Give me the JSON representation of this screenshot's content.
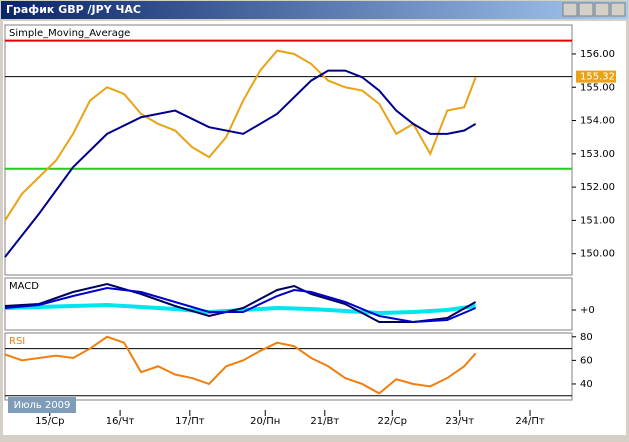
{
  "window": {
    "title": "График GBP /JPY  ЧАС"
  },
  "period_label": "Июль 2009",
  "chart_data": [
    {
      "type": "line",
      "label": "Simple_Moving_Average",
      "xlim": [
        0,
        100
      ],
      "ylim": [
        149.36,
        156.87
      ],
      "yticks": [
        {
          "value": 156,
          "label": "156.00"
        },
        {
          "value": 155,
          "label": "155.00"
        },
        {
          "value": 154,
          "label": "154.00"
        },
        {
          "value": 153,
          "label": "153.00"
        },
        {
          "value": 152,
          "label": "152.00"
        },
        {
          "value": 151,
          "label": "151.00"
        },
        {
          "value": 150,
          "label": "150.00"
        }
      ],
      "levels": [
        {
          "value": 156.4,
          "color": "#e00000"
        },
        {
          "value": 155.32,
          "color": "#000000",
          "tag_color": "#e8a317"
        },
        {
          "value": 152.55,
          "color": "#22cc22"
        }
      ],
      "series": [
        {
          "color": "#e8a317",
          "x": [
            0,
            3,
            6,
            9,
            12,
            15,
            18,
            21,
            24,
            27,
            30,
            33,
            36,
            39,
            42,
            45,
            48,
            51,
            54,
            57,
            60,
            63,
            66,
            69,
            72,
            75,
            78,
            81,
            83
          ],
          "values": [
            151.0,
            151.8,
            152.3,
            152.8,
            153.6,
            154.6,
            155.0,
            154.8,
            154.2,
            153.9,
            153.7,
            153.2,
            152.9,
            153.5,
            154.6,
            155.5,
            156.1,
            156.0,
            155.7,
            155.2,
            155.0,
            154.9,
            154.5,
            153.6,
            153.9,
            153.0,
            154.3,
            154.4,
            155.3
          ]
        },
        {
          "color": "#00008b",
          "x": [
            0,
            6,
            12,
            18,
            24,
            30,
            36,
            42,
            48,
            54,
            57,
            60,
            63,
            66,
            69,
            72,
            75,
            78,
            81,
            83
          ],
          "values": [
            149.9,
            151.2,
            152.6,
            153.6,
            154.1,
            154.3,
            153.8,
            153.6,
            154.2,
            155.2,
            155.5,
            155.5,
            155.3,
            154.9,
            154.3,
            153.9,
            153.6,
            153.6,
            153.7,
            153.9
          ]
        }
      ]
    },
    {
      "type": "line",
      "label": "MACD",
      "xlim": [
        0,
        100
      ],
      "ylim": [
        -1,
        1.6
      ],
      "yticks": [
        {
          "value": 0,
          "label": "+0"
        }
      ],
      "series": [
        {
          "color": "#00e5ee",
          "x": [
            0,
            6,
            12,
            18,
            24,
            30,
            36,
            42,
            48,
            54,
            60,
            66,
            72,
            78,
            83
          ],
          "values": [
            0.1,
            0.15,
            0.2,
            0.25,
            0.15,
            0.05,
            -0.1,
            0.0,
            0.1,
            0.05,
            -0.05,
            -0.15,
            -0.1,
            0.0,
            0.2
          ]
        },
        {
          "color": "#000060",
          "x": [
            0,
            6,
            12,
            18,
            24,
            30,
            36,
            42,
            48,
            51,
            54,
            60,
            66,
            72,
            78,
            83
          ],
          "values": [
            0.2,
            0.3,
            0.9,
            1.3,
            0.8,
            0.2,
            -0.3,
            0.1,
            1.0,
            1.2,
            0.8,
            0.3,
            -0.6,
            -0.6,
            -0.4,
            0.4
          ]
        },
        {
          "color": "#0000cd",
          "x": [
            0,
            6,
            12,
            18,
            24,
            30,
            36,
            42,
            48,
            51,
            54,
            60,
            66,
            72,
            78,
            83
          ],
          "values": [
            0.1,
            0.25,
            0.7,
            1.1,
            0.9,
            0.4,
            -0.1,
            -0.1,
            0.7,
            1.0,
            0.9,
            0.4,
            -0.3,
            -0.6,
            -0.5,
            0.1
          ]
        }
      ]
    },
    {
      "type": "line",
      "label": "RSI",
      "xlim": [
        0,
        100
      ],
      "ylim": [
        26.4,
        83.2
      ],
      "yticks": [
        80,
        60,
        40
      ],
      "levels": [
        {
          "value": 70,
          "color": "#000000"
        },
        {
          "value": 30,
          "color": "#000000"
        }
      ],
      "xticks": [
        {
          "value": 7.9,
          "label": "15/Ср"
        },
        {
          "value": 20.3,
          "label": "16/Чт"
        },
        {
          "value": 32.6,
          "label": "17/Пт"
        },
        {
          "value": 45.9,
          "label": "20/Пн"
        },
        {
          "value": 56.4,
          "label": "21/Вт"
        },
        {
          "value": 68.3,
          "label": "22/Ср"
        },
        {
          "value": 80.2,
          "label": "23/Чт"
        },
        {
          "value": 92.6,
          "label": "24/Пт"
        }
      ],
      "series": [
        {
          "color": "#f07f10",
          "x": [
            0,
            3,
            6,
            9,
            12,
            15,
            18,
            21,
            24,
            27,
            30,
            33,
            36,
            39,
            42,
            45,
            48,
            51,
            54,
            57,
            60,
            63,
            66,
            69,
            72,
            75,
            78,
            81,
            83
          ],
          "values": [
            65,
            60,
            62,
            64,
            62,
            70,
            80,
            75,
            50,
            55,
            48,
            45,
            40,
            55,
            60,
            68,
            75,
            72,
            62,
            55,
            45,
            40,
            32,
            44,
            40,
            38,
            45,
            55,
            66
          ]
        }
      ]
    }
  ]
}
